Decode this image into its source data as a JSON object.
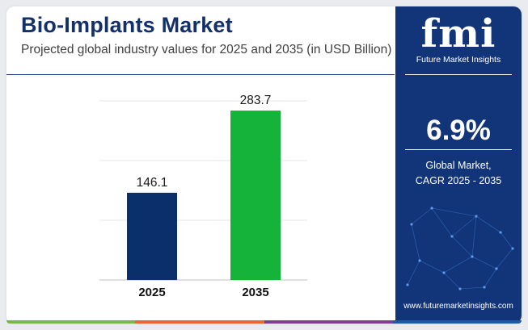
{
  "header": {
    "title": "Bio-Implants Market",
    "subtitle": "Projected global industry values for 2025 and 2035 (in USD Billion)"
  },
  "chart_data": {
    "type": "bar",
    "categories": [
      "2025",
      "2035"
    ],
    "values": [
      146.1,
      283.7
    ],
    "value_labels": [
      "146.1",
      "283.7"
    ],
    "colors": [
      "#0b2f6b",
      "#16b33a"
    ],
    "ylim": [
      0,
      300
    ],
    "grid": true,
    "legend": "none",
    "xlabel": "",
    "ylabel": ""
  },
  "panel": {
    "logo": "fmi",
    "logo_subtitle": "Future Market Insights",
    "cagr_value": "6.9%",
    "cagr_label_line1": "Global Market,",
    "cagr_label_line2": "CAGR 2025 - 2035",
    "website": "www.futuremarketinsights.com",
    "background_color": "#123579"
  },
  "strip_colors": [
    "#7ab648",
    "#e8692e",
    "#7b3f98",
    "#1f5aa6"
  ]
}
